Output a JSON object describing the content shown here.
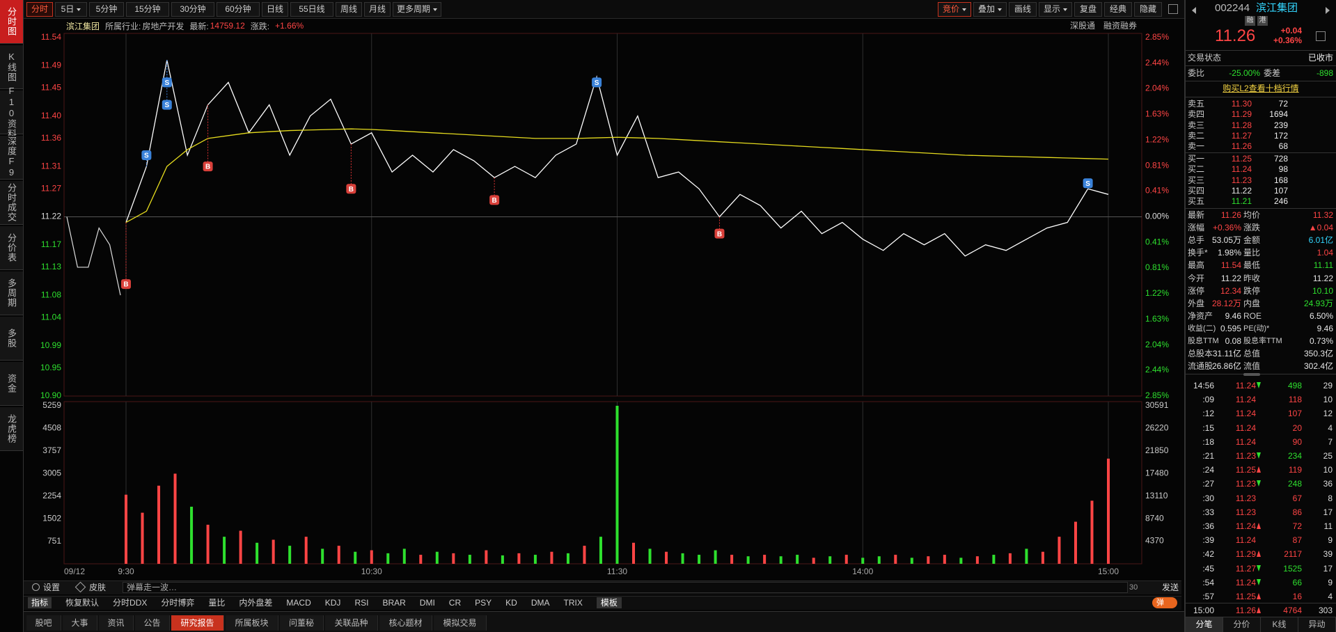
{
  "sidebar": [
    "分时图",
    "K线图",
    "F10资料",
    "深度F9",
    "分时成交",
    "分价表",
    "多周期",
    "多股",
    "资金",
    "龙虎榜"
  ],
  "sidebar_active": 0,
  "periods": [
    "分时",
    "5日",
    "5分钟",
    "15分钟",
    "30分钟",
    "60分钟",
    "日线",
    "55日线",
    "周线",
    "月线",
    "更多周期"
  ],
  "periods_active": 0,
  "period_dropdowns": [
    1,
    10
  ],
  "tools": [
    "竞价",
    "叠加",
    "画线",
    "显示",
    "复盘",
    "经典",
    "隐藏"
  ],
  "tools_active": 0,
  "tool_dropdowns": [
    0,
    1,
    3
  ],
  "info": {
    "name": "滨江集团",
    "industry_label": "所属行业:",
    "industry": "房地产开发",
    "latest_label": "最新:",
    "latest": "14759.12",
    "change_label": "涨跌:",
    "change": "+1.66%",
    "links": [
      "深股通",
      "融资融券"
    ]
  },
  "chart_data": [
    {
      "type": "line",
      "base": 11.22,
      "ylim": [
        10.9,
        11.54
      ],
      "yticks": [
        11.54,
        11.49,
        11.45,
        {
          "value": 11.4,
          "label": "11.40"
        },
        11.36,
        11.31,
        11.27,
        11.22,
        11.17,
        11.13,
        11.08,
        11.04,
        10.99,
        10.95,
        {
          "value": 10.9,
          "label": "10.90"
        }
      ],
      "y2lim": [
        -2.85,
        2.85
      ],
      "y2ticks": [
        {
          "value": 2.85,
          "label": "2.85%"
        },
        {
          "value": 2.44,
          "label": "2.44%"
        },
        {
          "value": 2.04,
          "label": "2.04%"
        },
        {
          "value": 1.63,
          "label": "1.63%"
        },
        {
          "value": 1.22,
          "label": "1.22%"
        },
        {
          "value": 0.81,
          "label": "0.81%"
        },
        {
          "value": 0.41,
          "label": "0.41%"
        },
        {
          "value": 0,
          "label": "0.00%"
        },
        {
          "value": -0.41,
          "label": "0.41%"
        },
        {
          "value": -0.81,
          "label": "0.81%"
        },
        {
          "value": -1.22,
          "label": "1.22%"
        },
        {
          "value": -1.63,
          "label": "1.63%"
        },
        {
          "value": -2.04,
          "label": "2.04%"
        },
        {
          "value": -2.44,
          "label": "2.44%"
        },
        {
          "value": -2.85,
          "label": "2.85%"
        }
      ],
      "x_labels": [
        "09/12",
        "9:30",
        "10:30",
        "11:30",
        "14:00",
        "15:00"
      ],
      "auction_values": [
        11.22,
        11.13,
        11.13,
        11.2,
        11.17,
        11.08
      ],
      "series": [
        {
          "color": "#ffffff",
          "values": [
            11.21,
            11.31,
            11.5,
            11.33,
            11.42,
            11.46,
            11.37,
            11.42,
            11.33,
            11.4,
            11.43,
            11.35,
            11.37,
            11.3,
            11.33,
            11.3,
            11.34,
            11.32,
            11.29,
            11.31,
            11.29,
            11.33,
            11.35,
            11.47,
            11.33,
            11.4,
            11.29,
            11.3,
            11.27,
            11.22,
            11.26,
            11.24,
            11.2,
            11.23,
            11.19,
            11.21,
            11.18,
            11.16,
            11.19,
            11.17,
            11.19,
            11.15,
            11.17,
            11.16,
            11.18,
            11.2,
            11.21,
            11.27,
            11.26
          ]
        },
        {
          "color": "#e6dc1e",
          "values": [
            11.21,
            11.23,
            11.31,
            11.34,
            11.36,
            11.365,
            11.37,
            11.372,
            11.374,
            11.375,
            11.376,
            11.377,
            11.376,
            11.374,
            11.372,
            11.37,
            11.368,
            11.366,
            11.364,
            11.362,
            11.36,
            11.36,
            11.36,
            11.361,
            11.362,
            11.361,
            11.36,
            11.358,
            11.356,
            11.354,
            11.352,
            11.35,
            11.348,
            11.346,
            11.344,
            11.342,
            11.34,
            11.338,
            11.336,
            11.334,
            11.332,
            11.33,
            11.329,
            11.328,
            11.327,
            11.326,
            11.325,
            11.324,
            11.323
          ]
        }
      ],
      "markers": [
        {
          "label": "B",
          "index": 0,
          "value": 11.1
        },
        {
          "label": "S",
          "index": 1,
          "value": 11.33
        },
        {
          "label": "S",
          "index": 2,
          "value": 11.42
        },
        {
          "label": "S",
          "index": 2,
          "value": 11.46
        },
        {
          "label": "B",
          "index": 4,
          "value": 11.31
        },
        {
          "label": "B",
          "index": 11,
          "value": 11.27
        },
        {
          "label": "B",
          "index": 18,
          "value": 11.25
        },
        {
          "label": "S",
          "index": 23,
          "value": 11.46
        },
        {
          "label": "B",
          "index": 29,
          "value": 11.19
        },
        {
          "label": "S",
          "index": 47,
          "value": 11.28
        }
      ]
    },
    {
      "type": "bar",
      "ylim": [
        0,
        5259
      ],
      "yticks": [
        751,
        1502,
        2254,
        3005,
        3757,
        4508,
        5259
      ],
      "y2lim": [
        0,
        30591
      ],
      "y2ticks": [
        4370,
        8740,
        13110,
        17480,
        21850,
        26220,
        30591
      ],
      "series": [
        {
          "color": "#ff4545",
          "values": [
            2300,
            1700,
            2600,
            3000,
            null,
            1300,
            null,
            1100,
            null,
            800,
            null,
            900,
            null,
            600,
            null,
            450,
            null,
            null,
            300,
            null,
            350,
            null,
            450,
            null,
            350,
            null,
            400,
            null,
            600,
            null,
            null,
            700,
            null,
            400,
            null,
            null,
            null,
            300,
            null,
            300,
            null,
            null,
            200,
            null,
            300,
            null,
            null,
            300,
            null,
            250,
            300,
            null,
            250,
            null,
            350,
            null,
            400,
            900,
            1400,
            2100,
            3500
          ]
        },
        {
          "color": "#2ee02e",
          "values": [
            null,
            null,
            null,
            null,
            1900,
            null,
            900,
            null,
            700,
            null,
            600,
            null,
            500,
            null,
            400,
            null,
            350,
            500,
            null,
            400,
            null,
            300,
            null,
            280,
            null,
            300,
            null,
            350,
            null,
            900,
            5259,
            null,
            500,
            null,
            350,
            300,
            450,
            null,
            250,
            null,
            250,
            300,
            null,
            250,
            null,
            200,
            250,
            null,
            200,
            null,
            null,
            200,
            null,
            300,
            null,
            500,
            null,
            null,
            null,
            null,
            null
          ]
        }
      ]
    }
  ],
  "quote": {
    "code": "002244",
    "name": "滨江集团",
    "badges": [
      "融",
      "港"
    ],
    "price": "11.26",
    "change": "+0.04",
    "pct": "+0.36%"
  },
  "status": {
    "label": "交易状态",
    "value": "已收市"
  },
  "weibi": {
    "label": "委比",
    "value": "-25.00%",
    "diff_label": "委差",
    "diff": "-898"
  },
  "l2": "购买L2查看十档行情",
  "book": [
    [
      "卖五",
      "11.30",
      "72"
    ],
    [
      "卖四",
      "11.29",
      "1694"
    ],
    [
      "卖三",
      "11.28",
      "239"
    ],
    [
      "卖二",
      "11.27",
      "172"
    ],
    [
      "卖一",
      "11.26",
      "68"
    ],
    [
      "买一",
      "11.25",
      "728"
    ],
    [
      "买二",
      "11.24",
      "98"
    ],
    [
      "买三",
      "11.23",
      "168"
    ],
    [
      "买四",
      "11.22",
      "107"
    ],
    [
      "买五",
      "11.21",
      "246"
    ]
  ],
  "stats": [
    [
      {
        "label": "最新",
        "value": "11.26",
        "color": "red"
      },
      {
        "label": "均价",
        "value": "11.32",
        "color": "red"
      }
    ],
    [
      {
        "label": "涨幅",
        "value": "+0.36%",
        "color": "red"
      },
      {
        "label": "涨跌",
        "value": "▲0.04",
        "color": "red"
      }
    ],
    [
      {
        "label": "总手",
        "value": "53.05万",
        "color": "white"
      },
      {
        "label": "金额",
        "value": "6.01亿",
        "color": "cyan"
      }
    ],
    [
      {
        "label": "换手*",
        "value": "1.98%",
        "color": "white"
      },
      {
        "label": "量比",
        "value": "1.04",
        "color": "red"
      }
    ],
    [
      {
        "label": "最高",
        "value": "11.54",
        "color": "red"
      },
      {
        "label": "最低",
        "value": "11.11",
        "color": "green"
      }
    ],
    [
      {
        "label": "今开",
        "value": "11.22",
        "color": "white"
      },
      {
        "label": "昨收",
        "value": "11.22",
        "color": "white"
      }
    ],
    [
      {
        "label": "涨停",
        "value": "12.34",
        "color": "red"
      },
      {
        "label": "跌停",
        "value": "10.10",
        "color": "green"
      }
    ],
    [
      {
        "label": "外盘",
        "value": "28.12万",
        "color": "red"
      },
      {
        "label": "内盘",
        "value": "24.93万",
        "color": "green"
      }
    ],
    [
      {
        "label": "净资产",
        "value": "9.46",
        "color": "white"
      },
      {
        "label": "ROE",
        "value": "6.50%",
        "color": "white"
      }
    ],
    [
      {
        "label": "收益(二)",
        "value": "0.595",
        "color": "white"
      },
      {
        "label": "PE(动)*",
        "value": "9.46",
        "color": "white"
      }
    ],
    [
      {
        "label": "股息TTM",
        "value": "0.08",
        "color": "white"
      },
      {
        "label": "股息率TTM",
        "value": "0.73%",
        "color": "white"
      }
    ],
    [
      {
        "label": "总股本",
        "value": "31.11亿",
        "color": "white"
      },
      {
        "label": "总值",
        "value": "350.3亿",
        "color": "white"
      }
    ],
    [
      {
        "label": "流通股",
        "value": "26.86亿",
        "color": "white"
      },
      {
        "label": "流值",
        "value": "302.4亿",
        "color": "white"
      }
    ]
  ],
  "trades": [
    {
      "time": "14:56",
      "price": "11.24",
      "arrow": "down",
      "vol": "498",
      "count": "29",
      "side": "sell"
    },
    {
      "time": ":09",
      "price": "11.24",
      "arrow": "none",
      "vol": "118",
      "count": "10",
      "side": "buy"
    },
    {
      "time": ":12",
      "price": "11.24",
      "arrow": "none",
      "vol": "107",
      "count": "12",
      "side": "buy"
    },
    {
      "time": ":15",
      "price": "11.24",
      "arrow": "none",
      "vol": "20",
      "count": "4",
      "side": "buy"
    },
    {
      "time": ":18",
      "price": "11.24",
      "arrow": "none",
      "vol": "90",
      "count": "7",
      "side": "buy"
    },
    {
      "time": ":21",
      "price": "11.23",
      "arrow": "down",
      "vol": "234",
      "count": "25",
      "side": "sell"
    },
    {
      "time": ":24",
      "price": "11.25",
      "arrow": "up",
      "vol": "119",
      "count": "10",
      "side": "buy"
    },
    {
      "time": ":27",
      "price": "11.23",
      "arrow": "down",
      "vol": "248",
      "count": "36",
      "side": "sell"
    },
    {
      "time": ":30",
      "price": "11.23",
      "arrow": "none",
      "vol": "67",
      "count": "8",
      "side": "buy"
    },
    {
      "time": ":33",
      "price": "11.23",
      "arrow": "none",
      "vol": "86",
      "count": "17",
      "side": "buy"
    },
    {
      "time": ":36",
      "price": "11.24",
      "arrow": "up",
      "vol": "72",
      "count": "11",
      "side": "buy"
    },
    {
      "time": ":39",
      "price": "11.24",
      "arrow": "none",
      "vol": "87",
      "count": "9",
      "side": "buy"
    },
    {
      "time": ":42",
      "price": "11.29",
      "arrow": "up",
      "vol": "2117",
      "count": "39",
      "side": "buy"
    },
    {
      "time": ":45",
      "price": "11.27",
      "arrow": "down",
      "vol": "1525",
      "count": "17",
      "side": "sell"
    },
    {
      "time": ":54",
      "price": "11.24",
      "arrow": "down",
      "vol": "66",
      "count": "9",
      "side": "sell"
    },
    {
      "time": ":57",
      "price": "11.25",
      "arrow": "up",
      "vol": "16",
      "count": "4",
      "side": "buy"
    },
    {
      "time": "15:00",
      "price": "11.26",
      "arrow": "up",
      "vol": "4764",
      "count": "303",
      "side": "buy"
    }
  ],
  "right_tabs": [
    "分笔",
    "分价",
    "K线",
    "异动"
  ],
  "right_tabs_active": 0,
  "footer": {
    "settings": "设置",
    "skin": "皮肤",
    "danmu": "弹幕走一波…",
    "danmu_count": "30",
    "send": "发送"
  },
  "indicator_label": "指标",
  "indicators": [
    "恢复默认",
    "分时DDX",
    "分时博弈",
    "量比",
    "内外盘差",
    "MACD",
    "KDJ",
    "RSI",
    "BRAR",
    "DMI",
    "CR",
    "PSY",
    "KD",
    "DMA",
    "TRIX"
  ],
  "template": "模板",
  "danmu_toggle": "弹",
  "tabs": [
    "股吧",
    "大事",
    "资讯",
    "公告",
    "研究报告",
    "所属板块",
    "问董秘",
    "关联品种",
    "核心题材",
    "模拟交易"
  ],
  "tabs_active": 4
}
